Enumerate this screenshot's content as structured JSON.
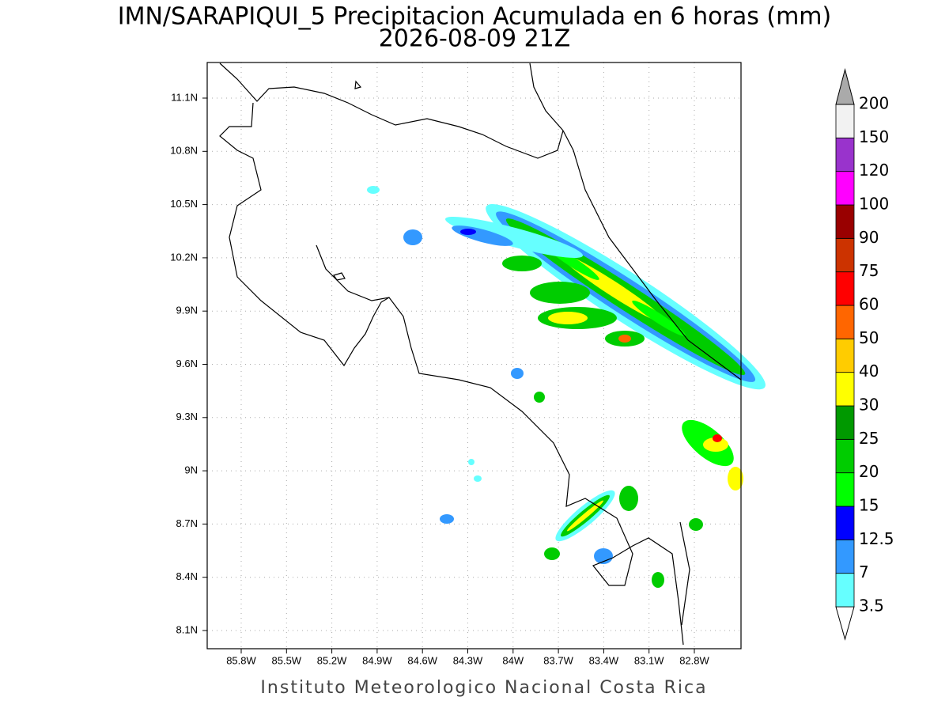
{
  "header": {
    "title": "IMN/SARAPIQUI_5 Precipitacion Acumulada en 6 horas (mm)",
    "subtitle": "2026-08-09 21Z"
  },
  "map": {
    "x_ticks": [
      "85.8W",
      "85.5W",
      "85.2W",
      "84.9W",
      "84.6W",
      "84.3W",
      "84W",
      "83.7W",
      "83.4W",
      "83.1W",
      "82.8W"
    ],
    "y_ticks": [
      "11.1N",
      "10.8N",
      "10.5N",
      "10.2N",
      "9.9N",
      "9.6N",
      "9.3N",
      "9N",
      "8.7N",
      "8.4N",
      "8.1N"
    ]
  },
  "colorbar": {
    "levels": [
      3.5,
      7,
      12.5,
      15,
      20,
      25,
      30,
      40,
      50,
      60,
      75,
      90,
      100,
      120,
      150,
      200
    ],
    "colors": [
      "#ffffff",
      "#66ffff",
      "#3399ff",
      "#0000ff",
      "#00ff00",
      "#00cc00",
      "#009900",
      "#ffff00",
      "#ffcc00",
      "#ff6600",
      "#ff0000",
      "#cc3300",
      "#990000",
      "#ff00ff",
      "#9933cc",
      "#f2f2f2",
      "#aaaaaa"
    ]
  },
  "footer": "Instituto Meteorologico Nacional Costa Rica"
}
